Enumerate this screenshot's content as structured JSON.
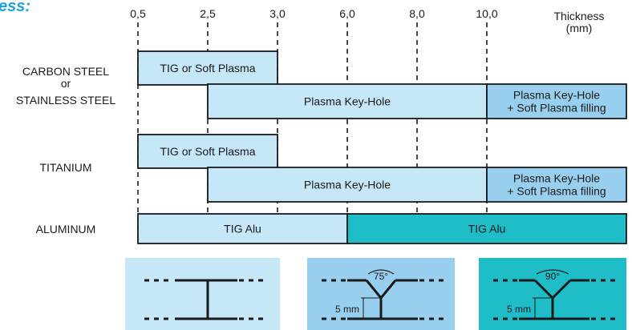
{
  "title_fragment": "ess:",
  "colors": {
    "light_fill": "#c6e7f7",
    "mid_fill": "#98cfee",
    "teal_fill": "#1fbdc8",
    "stroke": "#1a1a1a",
    "title_blue": "#1aa3e0"
  },
  "chart_data": {
    "type": "bar",
    "orientation": "horizontal",
    "x_ticks": [
      "0,5",
      "2,5",
      "3,0",
      "6,0",
      "8,0",
      "10,0"
    ],
    "x_tick_values": [
      0.5,
      2.5,
      3.0,
      6.0,
      8.0,
      10.0
    ],
    "x_label": [
      "Thickness",
      "(mm)"
    ],
    "x_range": [
      0.5,
      12.0
    ],
    "grid": "dashed vertical lines at each tick",
    "row_labels": [
      [
        "CARBON STEEL",
        "or",
        "STAINLESS STEEL"
      ],
      [
        "TITANIUM"
      ],
      [
        "ALUMINUM"
      ]
    ],
    "bars": [
      {
        "row": 0,
        "start": 0.5,
        "end": 3.0,
        "label": [
          "TIG or Soft Plasma"
        ],
        "style": "light"
      },
      {
        "row": 0,
        "start": 2.5,
        "end": 10.0,
        "label": [
          "Plasma Key-Hole"
        ],
        "style": "light"
      },
      {
        "row": 0,
        "start": 10.0,
        "end": 12.0,
        "label": [
          "Plasma Key-Hole",
          "+ Soft Plasma filling"
        ],
        "style": "mid"
      },
      {
        "row": 1,
        "start": 0.5,
        "end": 3.0,
        "label": [
          "TIG or Soft Plasma"
        ],
        "style": "light"
      },
      {
        "row": 1,
        "start": 2.5,
        "end": 10.0,
        "label": [
          "Plasma Key-Hole"
        ],
        "style": "light"
      },
      {
        "row": 1,
        "start": 10.0,
        "end": 12.0,
        "label": [
          "Plasma Key-Hole",
          "+ Soft Plasma filling"
        ],
        "style": "mid"
      },
      {
        "row": 2,
        "start": 0.5,
        "end": 6.0,
        "label": [
          "TIG Alu"
        ],
        "style": "light"
      },
      {
        "row": 2,
        "start": 6.0,
        "end": 12.0,
        "label": [
          "TIG Alu"
        ],
        "style": "teal"
      }
    ]
  },
  "joint_panels": [
    {
      "type": "square-butt",
      "style": "light"
    },
    {
      "type": "v-groove",
      "angle_label": "75°",
      "root_label": "5 mm",
      "style": "mid"
    },
    {
      "type": "v-groove",
      "angle_label": "90°",
      "root_label": "5 mm",
      "style": "teal"
    }
  ]
}
